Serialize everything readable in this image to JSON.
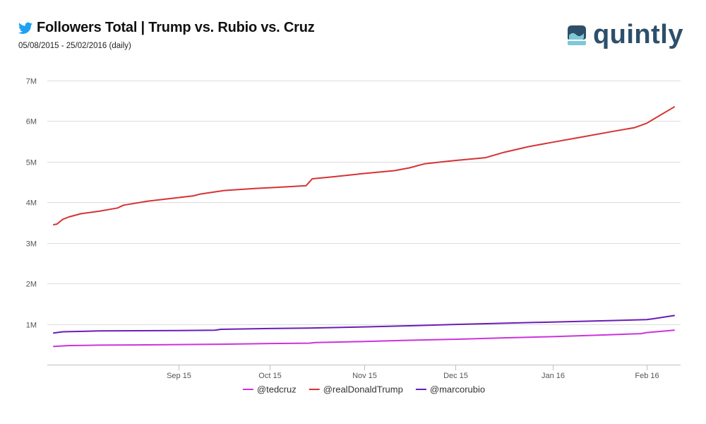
{
  "header": {
    "title": "Followers Total | Trump vs. Rubio vs. Cruz",
    "subtitle": "05/08/2015 - 25/02/2016 (daily)"
  },
  "logo": {
    "text": "quintly",
    "icon": "quintly-logo-icon"
  },
  "colors": {
    "accent": "#2d4f6b",
    "twitter": "#1da1f2"
  },
  "chart_data": {
    "type": "line",
    "title": "Followers Total | Trump vs. Rubio vs. Cruz",
    "subtitle": "05/08/2015 - 25/02/2016 (daily)",
    "xlabel": "",
    "ylabel": "",
    "x_start": "2015-08-05",
    "x_end": "2016-02-25",
    "ylim": [
      0,
      7000000
    ],
    "yticks": [
      {
        "value": 1000000,
        "label": "1M"
      },
      {
        "value": 2000000,
        "label": "2M"
      },
      {
        "value": 3000000,
        "label": "3M"
      },
      {
        "value": 4000000,
        "label": "4M"
      },
      {
        "value": 5000000,
        "label": "5M"
      },
      {
        "value": 6000000,
        "label": "6M"
      },
      {
        "value": 7000000,
        "label": "7M"
      }
    ],
    "xticks": [
      {
        "date": "2015-09-15",
        "label": "Sep 15"
      },
      {
        "date": "2015-10-15",
        "label": "Oct 15"
      },
      {
        "date": "2015-11-15",
        "label": "Nov 15"
      },
      {
        "date": "2015-12-15",
        "label": "Dec 15"
      },
      {
        "date": "2016-01-16",
        "label": "Jan 16"
      },
      {
        "date": "2016-02-16",
        "label": "Feb 16"
      }
    ],
    "grid": true,
    "legend_position": "bottom",
    "series": [
      {
        "name": "@tedcruz",
        "color": "#cc33dd",
        "points": [
          [
            "2015-08-05",
            450000
          ],
          [
            "2015-08-10",
            470000
          ],
          [
            "2015-08-20",
            480000
          ],
          [
            "2015-09-01",
            485000
          ],
          [
            "2015-09-15",
            495000
          ],
          [
            "2015-10-01",
            505000
          ],
          [
            "2015-10-15",
            520000
          ],
          [
            "2015-10-28",
            530000
          ],
          [
            "2015-10-30",
            545000
          ],
          [
            "2015-11-15",
            570000
          ],
          [
            "2015-11-30",
            600000
          ],
          [
            "2015-12-15",
            625000
          ],
          [
            "2015-12-31",
            660000
          ],
          [
            "2016-01-16",
            690000
          ],
          [
            "2016-02-01",
            730000
          ],
          [
            "2016-02-14",
            765000
          ],
          [
            "2016-02-16",
            790000
          ],
          [
            "2016-02-25",
            850000
          ]
        ]
      },
      {
        "name": "@realDonaldTrump",
        "color": "#d63333",
        "points": [
          [
            "2015-08-05",
            3450000
          ],
          [
            "2015-08-06",
            3460000
          ],
          [
            "2015-08-08",
            3580000
          ],
          [
            "2015-08-10",
            3640000
          ],
          [
            "2015-08-14",
            3720000
          ],
          [
            "2015-08-20",
            3780000
          ],
          [
            "2015-08-26",
            3860000
          ],
          [
            "2015-08-28",
            3930000
          ],
          [
            "2015-09-05",
            4030000
          ],
          [
            "2015-09-12",
            4090000
          ],
          [
            "2015-09-20",
            4160000
          ],
          [
            "2015-09-22",
            4200000
          ],
          [
            "2015-09-30",
            4290000
          ],
          [
            "2015-10-10",
            4340000
          ],
          [
            "2015-10-20",
            4380000
          ],
          [
            "2015-10-27",
            4410000
          ],
          [
            "2015-10-29",
            4580000
          ],
          [
            "2015-11-05",
            4630000
          ],
          [
            "2015-11-15",
            4710000
          ],
          [
            "2015-11-25",
            4780000
          ],
          [
            "2015-11-30",
            4850000
          ],
          [
            "2015-12-05",
            4950000
          ],
          [
            "2015-12-15",
            5030000
          ],
          [
            "2015-12-25",
            5100000
          ],
          [
            "2015-12-31",
            5230000
          ],
          [
            "2016-01-08",
            5370000
          ],
          [
            "2016-01-16",
            5480000
          ],
          [
            "2016-01-25",
            5600000
          ],
          [
            "2016-02-05",
            5750000
          ],
          [
            "2016-02-12",
            5840000
          ],
          [
            "2016-02-16",
            5950000
          ],
          [
            "2016-02-18",
            6040000
          ],
          [
            "2016-02-25",
            6350000
          ]
        ]
      },
      {
        "name": "@marcorubio",
        "color": "#6a1eb5",
        "points": [
          [
            "2015-08-05",
            780000
          ],
          [
            "2015-08-08",
            810000
          ],
          [
            "2015-08-20",
            830000
          ],
          [
            "2015-09-15",
            840000
          ],
          [
            "2015-09-27",
            850000
          ],
          [
            "2015-09-29",
            870000
          ],
          [
            "2015-10-15",
            890000
          ],
          [
            "2015-10-28",
            900000
          ],
          [
            "2015-11-15",
            930000
          ],
          [
            "2015-12-01",
            960000
          ],
          [
            "2015-12-15",
            990000
          ],
          [
            "2015-12-31",
            1020000
          ],
          [
            "2016-01-16",
            1050000
          ],
          [
            "2016-02-01",
            1080000
          ],
          [
            "2016-02-16",
            1110000
          ],
          [
            "2016-02-18",
            1130000
          ],
          [
            "2016-02-25",
            1210000
          ]
        ]
      }
    ]
  }
}
